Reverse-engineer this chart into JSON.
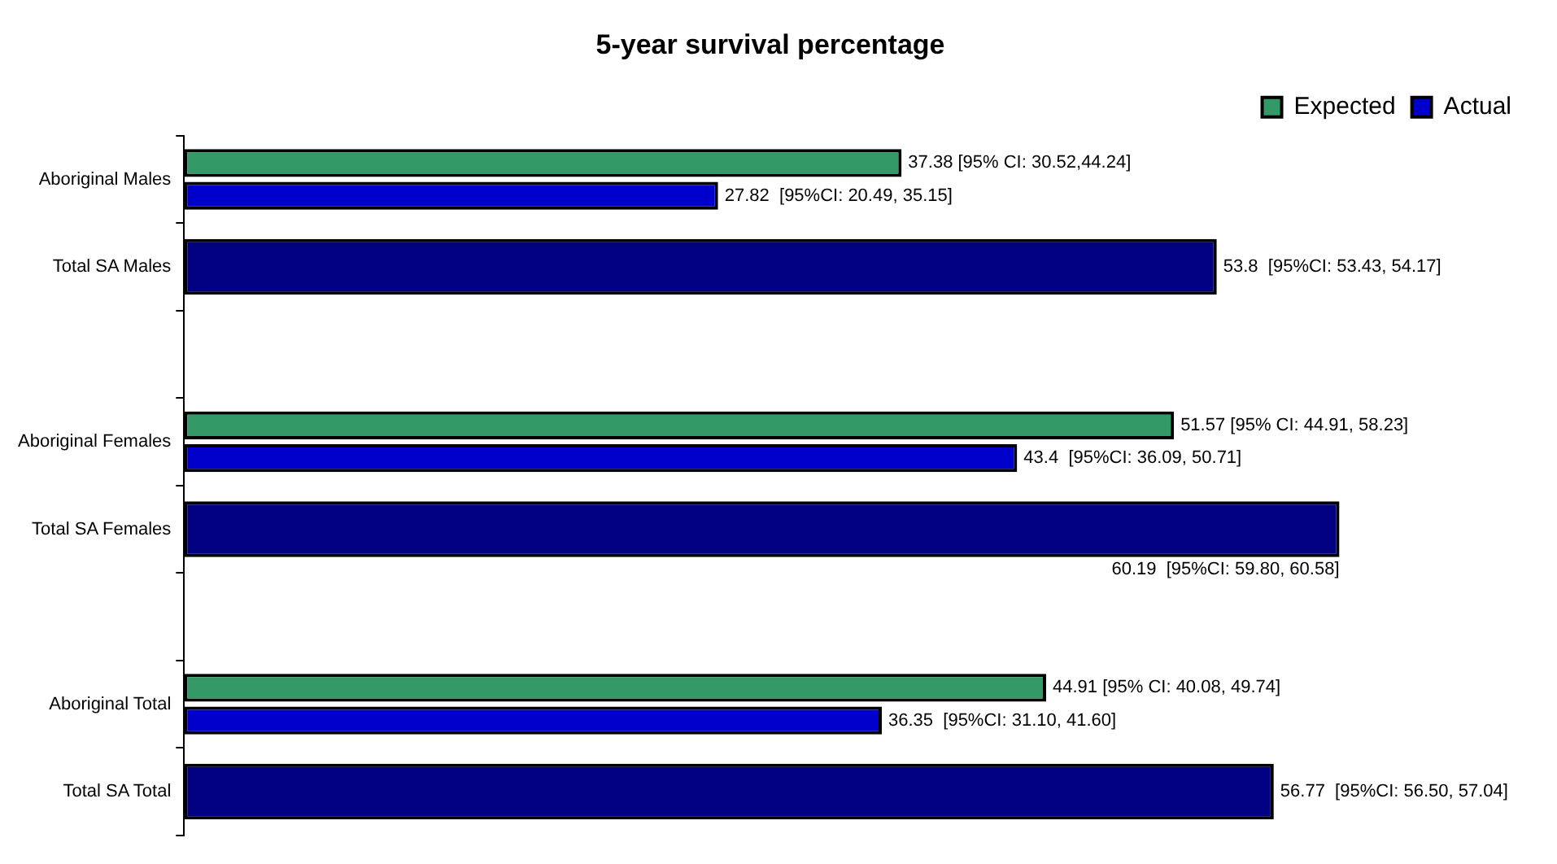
{
  "chart_data": {
    "type": "bar",
    "orientation": "horizontal",
    "title": "5-year survival percentage",
    "categories": [
      "Aboriginal Males",
      "Total SA Males",
      null,
      "Aboriginal Females",
      "Total SA Females",
      null,
      "Aboriginal Total",
      "Total SA Total"
    ],
    "series": [
      {
        "name": "Expected",
        "color": "#339966",
        "values": [
          37.38,
          null,
          null,
          51.57,
          null,
          null,
          44.91,
          null
        ],
        "value_labels": [
          "37.38 [95% CI: 30.52,44.24]",
          null,
          null,
          "51.57 [95% CI: 44.91, 58.23]",
          null,
          null,
          "44.91 [95% CI: 40.08, 49.74]",
          null
        ]
      },
      {
        "name": "Actual",
        "color": "#0000cc",
        "colors": [
          "#0000cc",
          "#000080",
          null,
          "#0000cc",
          "#000080",
          null,
          "#0000cc",
          "#000080"
        ],
        "values": [
          27.82,
          53.8,
          null,
          43.4,
          60.19,
          null,
          36.35,
          56.77
        ],
        "value_labels": [
          "27.82  [95%CI: 20.49, 35.15]",
          "53.8  [95%CI: 53.43, 54.17]",
          null,
          "43.4  [95%CI: 36.09, 50.71]",
          "60.19  [95%CI: 59.80, 60.58]",
          null,
          "36.35  [95%CI: 31.10, 41.60]",
          "56.77  [95%CI: 56.50, 57.04]"
        ]
      }
    ],
    "legend": "top right"
  }
}
